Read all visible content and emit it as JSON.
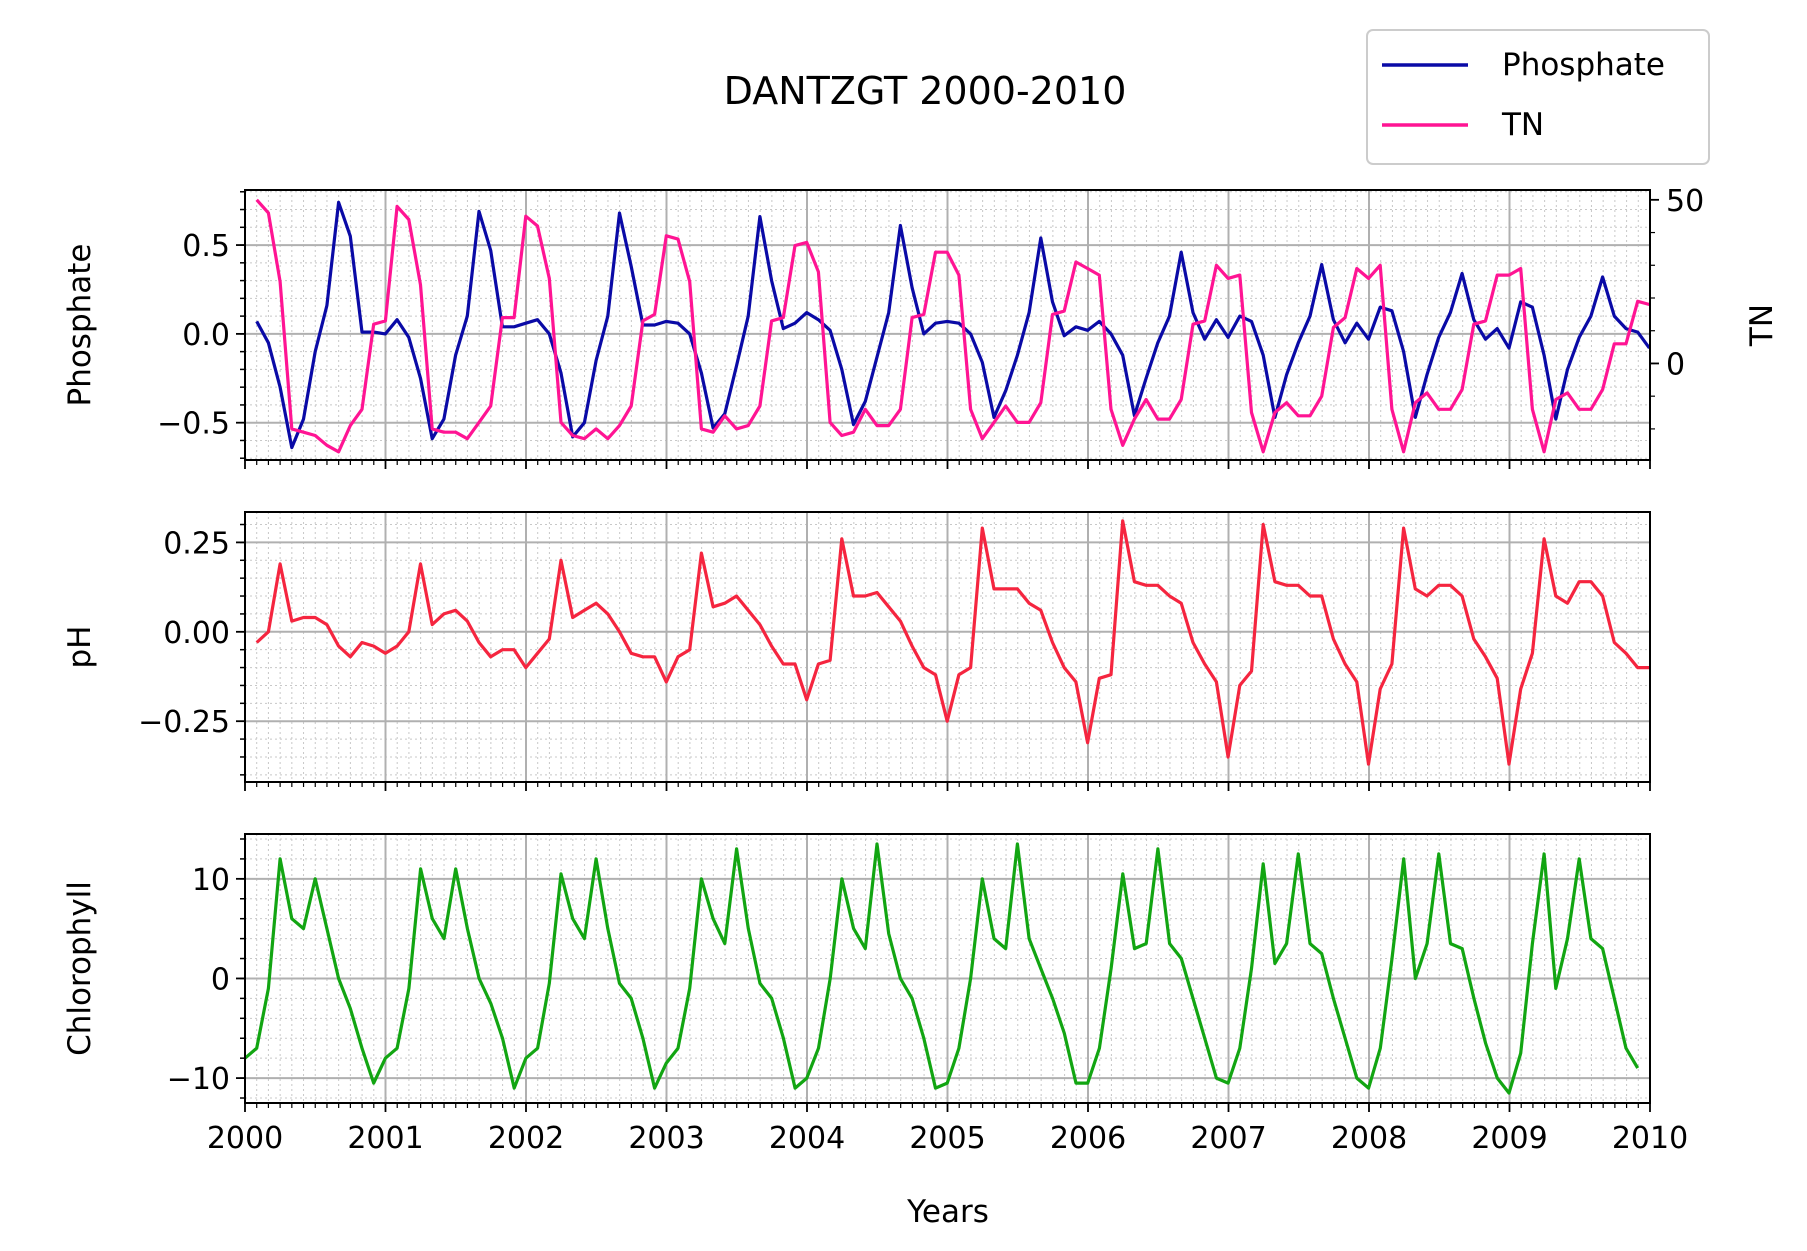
{
  "title": "DANTZGT 2000-2010",
  "legend": {
    "placement": "top-right",
    "entries": [
      {
        "label": "Phosphate",
        "color": "#0a0aa6"
      },
      {
        "label": "TN",
        "color": "#ff1493"
      }
    ]
  },
  "xlabel": "Years",
  "x_ticks": [
    "2000",
    "2001",
    "2002",
    "2003",
    "2004",
    "2005",
    "2006",
    "2007",
    "2008",
    "2009",
    "2010"
  ],
  "chart_data": [
    {
      "type": "line",
      "panel": "top",
      "ylabel": "Phosphate",
      "y2label": "TN",
      "xlim": [
        2000,
        2010
      ],
      "ylim": [
        -0.71,
        0.81
      ],
      "y2lim": [
        -29.5,
        53
      ],
      "yticks": [
        0.5,
        0.0,
        -0.5
      ],
      "ytick_labels": [
        "0.5",
        "0.0",
        "−0.5"
      ],
      "y2ticks": [
        50,
        0
      ],
      "y2tick_labels": [
        "50",
        "0"
      ],
      "grid": true,
      "x_start": 2000.083,
      "x_step": 0.0833,
      "series": [
        {
          "name": "Phosphate",
          "axis": "left",
          "color": "#0a0aa6",
          "values": [
            0.07,
            -0.05,
            -0.3,
            -0.64,
            -0.48,
            -0.1,
            0.16,
            0.74,
            0.55,
            0.01,
            0.01,
            0.0,
            0.08,
            -0.02,
            -0.25,
            -0.59,
            -0.48,
            -0.12,
            0.1,
            0.69,
            0.47,
            0.04,
            0.04,
            0.06,
            0.08,
            0.0,
            -0.22,
            -0.58,
            -0.5,
            -0.15,
            0.1,
            0.68,
            0.38,
            0.05,
            0.05,
            0.07,
            0.06,
            0.0,
            -0.22,
            -0.53,
            -0.45,
            -0.18,
            0.1,
            0.66,
            0.3,
            0.03,
            0.06,
            0.12,
            0.08,
            0.02,
            -0.2,
            -0.51,
            -0.38,
            -0.13,
            0.12,
            0.61,
            0.26,
            0.0,
            0.06,
            0.07,
            0.06,
            0.0,
            -0.16,
            -0.47,
            -0.32,
            -0.12,
            0.12,
            0.54,
            0.18,
            -0.01,
            0.04,
            0.02,
            0.07,
            0.0,
            -0.12,
            -0.46,
            -0.25,
            -0.05,
            0.1,
            0.46,
            0.12,
            -0.03,
            0.08,
            -0.02,
            0.1,
            0.07,
            -0.12,
            -0.47,
            -0.23,
            -0.05,
            0.1,
            0.39,
            0.08,
            -0.05,
            0.06,
            -0.03,
            0.15,
            0.13,
            -0.1,
            -0.47,
            -0.23,
            -0.02,
            0.12,
            0.34,
            0.08,
            -0.03,
            0.03,
            -0.08,
            0.18,
            0.15,
            -0.12,
            -0.48,
            -0.2,
            -0.02,
            0.1,
            0.32,
            0.1,
            0.03,
            0.01,
            -0.08
          ]
        },
        {
          "name": "TN",
          "axis": "right",
          "color": "#ff1493",
          "values": [
            50,
            46,
            25,
            -20,
            -21,
            -22,
            -25,
            -27,
            -19,
            -14,
            12,
            13,
            48,
            44,
            24,
            -20,
            -21,
            -21,
            -23,
            -18,
            -13,
            14,
            14,
            45,
            42,
            26,
            -18,
            -22,
            -23,
            -20,
            -23,
            -19,
            -13,
            13,
            15,
            39,
            38,
            25,
            -20,
            -21,
            -16,
            -20,
            -19,
            -13,
            13,
            14,
            36,
            37,
            28,
            -18,
            -22,
            -21,
            -14,
            -19,
            -19,
            -14,
            14,
            15,
            34,
            34,
            27,
            -14,
            -23,
            -18,
            -13,
            -18,
            -18,
            -12,
            15,
            16,
            31,
            29,
            27,
            -14,
            -25,
            -17,
            -11,
            -17,
            -17,
            -11,
            12,
            13,
            30,
            26,
            27,
            -15,
            -27,
            -15,
            -12,
            -16,
            -16,
            -10,
            11,
            14,
            29,
            26,
            30,
            -14,
            -27,
            -12,
            -9,
            -14,
            -14,
            -8,
            12,
            13,
            27,
            27,
            29,
            -14,
            -27,
            -11,
            -9,
            -14,
            -14,
            -8,
            6,
            6,
            19,
            18
          ]
        }
      ]
    },
    {
      "type": "line",
      "panel": "middle",
      "ylabel": "pH",
      "xlim": [
        2000,
        2010
      ],
      "ylim": [
        -0.42,
        0.335
      ],
      "yticks": [
        0.25,
        0.0,
        -0.25
      ],
      "ytick_labels": [
        "0.25",
        "0.00",
        "−0.25"
      ],
      "grid": true,
      "x_start": 2000.083,
      "x_step": 0.0833,
      "series": [
        {
          "name": "pH",
          "color": "#f5253f",
          "values": [
            -0.03,
            0.0,
            0.19,
            0.03,
            0.04,
            0.04,
            0.02,
            -0.04,
            -0.07,
            -0.03,
            -0.04,
            -0.06,
            -0.04,
            0.0,
            0.19,
            0.02,
            0.05,
            0.06,
            0.03,
            -0.03,
            -0.07,
            -0.05,
            -0.05,
            -0.1,
            -0.06,
            -0.02,
            0.2,
            0.04,
            0.06,
            0.08,
            0.05,
            0.0,
            -0.06,
            -0.07,
            -0.07,
            -0.14,
            -0.07,
            -0.05,
            0.22,
            0.07,
            0.08,
            0.1,
            0.06,
            0.02,
            -0.04,
            -0.09,
            -0.09,
            -0.19,
            -0.09,
            -0.08,
            0.26,
            0.1,
            0.1,
            0.11,
            0.07,
            0.03,
            -0.04,
            -0.1,
            -0.12,
            -0.25,
            -0.12,
            -0.1,
            0.29,
            0.12,
            0.12,
            0.12,
            0.08,
            0.06,
            -0.03,
            -0.1,
            -0.14,
            -0.31,
            -0.13,
            -0.12,
            0.31,
            0.14,
            0.13,
            0.13,
            0.1,
            0.08,
            -0.03,
            -0.09,
            -0.14,
            -0.35,
            -0.15,
            -0.11,
            0.3,
            0.14,
            0.13,
            0.13,
            0.1,
            0.1,
            -0.02,
            -0.09,
            -0.14,
            -0.37,
            -0.16,
            -0.09,
            0.29,
            0.12,
            0.1,
            0.13,
            0.13,
            0.1,
            -0.02,
            -0.07,
            -0.13,
            -0.37,
            -0.16,
            -0.06,
            0.26,
            0.1,
            0.08,
            0.14,
            0.14,
            0.1,
            -0.03,
            -0.06,
            -0.1,
            -0.1
          ]
        }
      ]
    },
    {
      "type": "line",
      "panel": "bottom",
      "ylabel": "Chlorophyll",
      "xlim": [
        2000,
        2010
      ],
      "ylim": [
        -12.5,
        14.5
      ],
      "yticks": [
        10,
        0,
        -10
      ],
      "ytick_labels": [
        "10",
        "0",
        "−10"
      ],
      "grid": true,
      "x_start": 2000.0,
      "x_step": 0.0833,
      "series": [
        {
          "name": "Chlorophyll",
          "color": "#12a512",
          "values": [
            -8,
            -7,
            -1,
            12,
            6,
            5,
            10,
            5,
            0,
            -3,
            -7,
            -10.5,
            -8,
            -7,
            -1,
            11,
            6,
            4,
            11,
            5,
            0,
            -2.5,
            -6,
            -11,
            -8,
            -7,
            -0.5,
            10.5,
            6,
            4,
            12,
            5,
            -0.5,
            -2,
            -6,
            -11,
            -8.5,
            -7,
            -1,
            10,
            6,
            3.5,
            13,
            5,
            -0.5,
            -2,
            -6,
            -11,
            -10,
            -7,
            0,
            10,
            5,
            3,
            13.5,
            4.5,
            0,
            -2,
            -6,
            -11,
            -10.5,
            -7,
            0,
            10,
            4,
            3,
            13.5,
            4,
            1,
            -2,
            -5.5,
            -10.5,
            -10.5,
            -7,
            1,
            10.5,
            3,
            3.5,
            13,
            3.5,
            2,
            -2,
            -6,
            -10,
            -10.5,
            -7,
            1,
            11.5,
            1.5,
            3.5,
            12.5,
            3.5,
            2.5,
            -2,
            -6,
            -10,
            -11,
            -7,
            2,
            12,
            0,
            3.5,
            12.5,
            3.5,
            3,
            -2,
            -6.5,
            -10,
            -11.5,
            -7.5,
            3.5,
            12.5,
            -1,
            4,
            12,
            4,
            3,
            -2,
            -7,
            -9
          ]
        }
      ]
    }
  ]
}
